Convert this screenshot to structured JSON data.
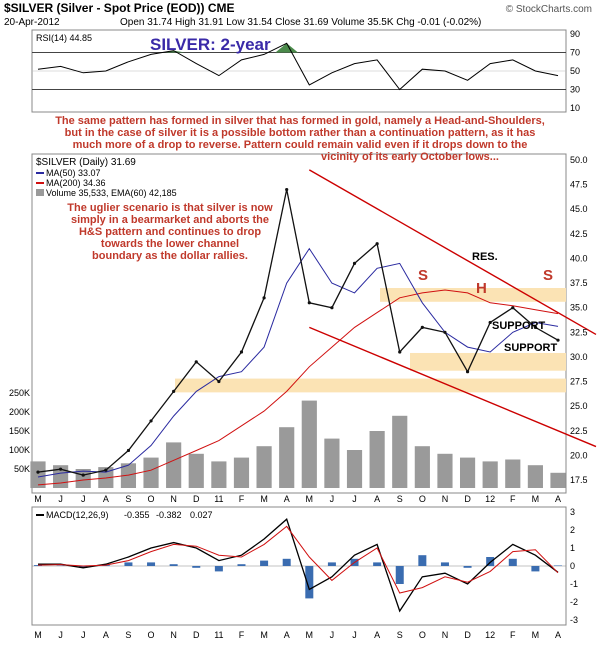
{
  "header": {
    "symbol_title": "$SILVER (Silver - Spot Price (EOD)) CME",
    "watermark": "© StockCharts.com",
    "date": "20-Apr-2012",
    "quote": "Open 31.74  High 31.91  Low 31.54  Close 31.69  Volume 35.5K  Chg -0.01 (-0.02%)"
  },
  "title": "SILVER: 2-year",
  "rsi_panel": {
    "label": "RSI(14) 44.85",
    "ticks": [
      "90",
      "70",
      "50",
      "30",
      "10"
    ]
  },
  "commentary_1": [
    "The same pattern has formed in silver that has formed in gold, namely a Head-and-Shoulders,",
    "but in the case of silver it is a possible bottom rather than a continuation pattern, as it has",
    "much more of a drop to reverse. Pattern could remain valid even if it drops down to the",
    "vicinity of its early October lows..."
  ],
  "commentary_2": [
    "The uglier scenario is that silver is now",
    "simply in a bearmarket and aborts the",
    "H&S pattern and continues to drop",
    "towards the lower channel",
    "boundary as the dollar rallies."
  ],
  "price_legend": {
    "main": "$SILVER (Daily) 31.69",
    "ma50": "MA(50) 33.07",
    "ma200": "MA(200) 34.36",
    "volume": "Volume 35,533, EMA(60) 42,185"
  },
  "annotations": {
    "res": "RES.",
    "support_upper": "SUPPORT",
    "support_lower": "SUPPORT",
    "left_shoulder": "S",
    "head": "H",
    "right_shoulder": "S"
  },
  "macd_panel": {
    "label_prefix": "MACD(12,26,9)",
    "macd_value": "-0.355",
    "signal_value": "-0.382",
    "hist_value": "0.027",
    "ticks": [
      "3",
      "2",
      "1",
      "0",
      "-1",
      "-2",
      "-3"
    ]
  },
  "price_ticks": [
    "50.0",
    "47.5",
    "45.0",
    "42.5",
    "40.0",
    "37.5",
    "35.0",
    "32.5",
    "30.0",
    "27.5",
    "25.0",
    "22.5",
    "20.0",
    "17.5"
  ],
  "volume_ticks": [
    "250K",
    "200K",
    "150K",
    "100K",
    "50K"
  ],
  "x_labels": [
    "M",
    "J",
    "J",
    "A",
    "S",
    "O",
    "N",
    "D",
    "11",
    "F",
    "M",
    "A",
    "M",
    "J",
    "J",
    "A",
    "S",
    "O",
    "N",
    "D",
    "12",
    "F",
    "M",
    "A"
  ],
  "colors": {
    "price": "#111111",
    "ma50": "#2a2aa0",
    "ma200": "#d01010",
    "volume": "#9a9a9a",
    "rsi_fill": "#4a8a4a",
    "band": "#fbe3b4",
    "channel": "#cc0000",
    "annotation": "#c0392b",
    "title": "#3a2aa8",
    "macd_hist": "#3a6cb0",
    "signal": "#d01010"
  },
  "chart_data": {
    "type": "line",
    "title": "SILVER: 2-year",
    "x_axis": "monthly, May 2010 to Apr 2012",
    "price_series": {
      "name": "$SILVER (Daily)",
      "x": [
        "2010-05",
        "2010-06",
        "2010-07",
        "2010-08",
        "2010-09",
        "2010-10",
        "2010-11",
        "2010-12",
        "2011-01",
        "2011-02",
        "2011-03",
        "2011-04",
        "2011-05",
        "2011-06",
        "2011-07",
        "2011-08",
        "2011-09",
        "2011-10",
        "2011-11",
        "2011-12",
        "2012-01",
        "2012-02",
        "2012-03",
        "2012-04"
      ],
      "values": [
        18.3,
        18.6,
        18.0,
        18.5,
        20.5,
        23.5,
        26.5,
        29.5,
        27.5,
        30.5,
        36.0,
        47.0,
        35.5,
        35.0,
        39.5,
        41.5,
        30.5,
        33.0,
        32.5,
        28.5,
        33.5,
        35.0,
        33.0,
        31.7
      ],
      "ylim": [
        17.5,
        50.0
      ]
    },
    "ma50": {
      "name": "MA(50)",
      "values": [
        17.8,
        18.2,
        18.4,
        18.3,
        19.0,
        21.0,
        24.0,
        26.5,
        28.0,
        28.5,
        31.0,
        37.5,
        41.0,
        37.5,
        36.5,
        39.0,
        39.5,
        35.5,
        32.5,
        31.0,
        30.5,
        32.5,
        33.5,
        33.1
      ]
    },
    "ma200": {
      "name": "MA(200)",
      "values": [
        17.0,
        17.2,
        17.5,
        17.7,
        18.0,
        18.5,
        19.5,
        20.5,
        21.5,
        23.0,
        24.5,
        26.5,
        29.0,
        31.0,
        33.0,
        34.5,
        36.0,
        36.5,
        36.8,
        36.5,
        35.5,
        35.2,
        34.8,
        34.4
      ]
    },
    "channel": {
      "upper": [
        {
          "x": "2011-05",
          "y": 49.0
        },
        {
          "x": "2012-04",
          "y": 34.5
        }
      ],
      "lower": [
        {
          "x": "2011-05",
          "y": 33.0
        },
        {
          "x": "2012-04",
          "y": 22.5
        }
      ]
    },
    "bands": [
      {
        "name": "RES.",
        "y_range": [
          35.6,
          37.0
        ]
      },
      {
        "name": "SUPPORT",
        "y_range": [
          28.6,
          30.4
        ]
      },
      {
        "name": "SUPPORT",
        "y_range": [
          26.4,
          27.8
        ]
      },
      {
        "name": "",
        "y_range": [
          26.4,
          27.8
        ]
      }
    ],
    "volume": {
      "name": "Volume",
      "values": [
        70,
        60,
        50,
        55,
        65,
        80,
        120,
        90,
        70,
        80,
        110,
        160,
        230,
        130,
        100,
        150,
        190,
        110,
        90,
        80,
        70,
        75,
        60,
        40
      ],
      "unit": "K",
      "ylim": [
        0,
        250
      ]
    },
    "rsi": {
      "name": "RSI(14)",
      "values": [
        52,
        55,
        48,
        50,
        60,
        68,
        72,
        58,
        45,
        62,
        68,
        80,
        35,
        48,
        58,
        62,
        30,
        52,
        50,
        40,
        58,
        62,
        50,
        45
      ],
      "ylim": [
        10,
        90
      ]
    },
    "macd": {
      "name": "MACD(12,26,9)",
      "macd": [
        0.1,
        0.1,
        -0.1,
        0.1,
        0.5,
        1.0,
        1.3,
        1.0,
        0.3,
        0.6,
        1.5,
        2.6,
        -1.3,
        -0.6,
        0.6,
        1.2,
        -2.5,
        -0.6,
        -0.4,
        -1.0,
        0.2,
        1.2,
        0.6,
        -0.35
      ],
      "signal": [
        0.05,
        0.08,
        0.0,
        0.05,
        0.3,
        0.8,
        1.2,
        1.1,
        0.6,
        0.5,
        1.2,
        2.2,
        0.5,
        -0.8,
        0.2,
        1.0,
        -1.5,
        -1.2,
        -0.6,
        -0.9,
        -0.3,
        0.8,
        0.9,
        -0.38
      ],
      "ylim": [
        -3,
        3
      ]
    }
  }
}
